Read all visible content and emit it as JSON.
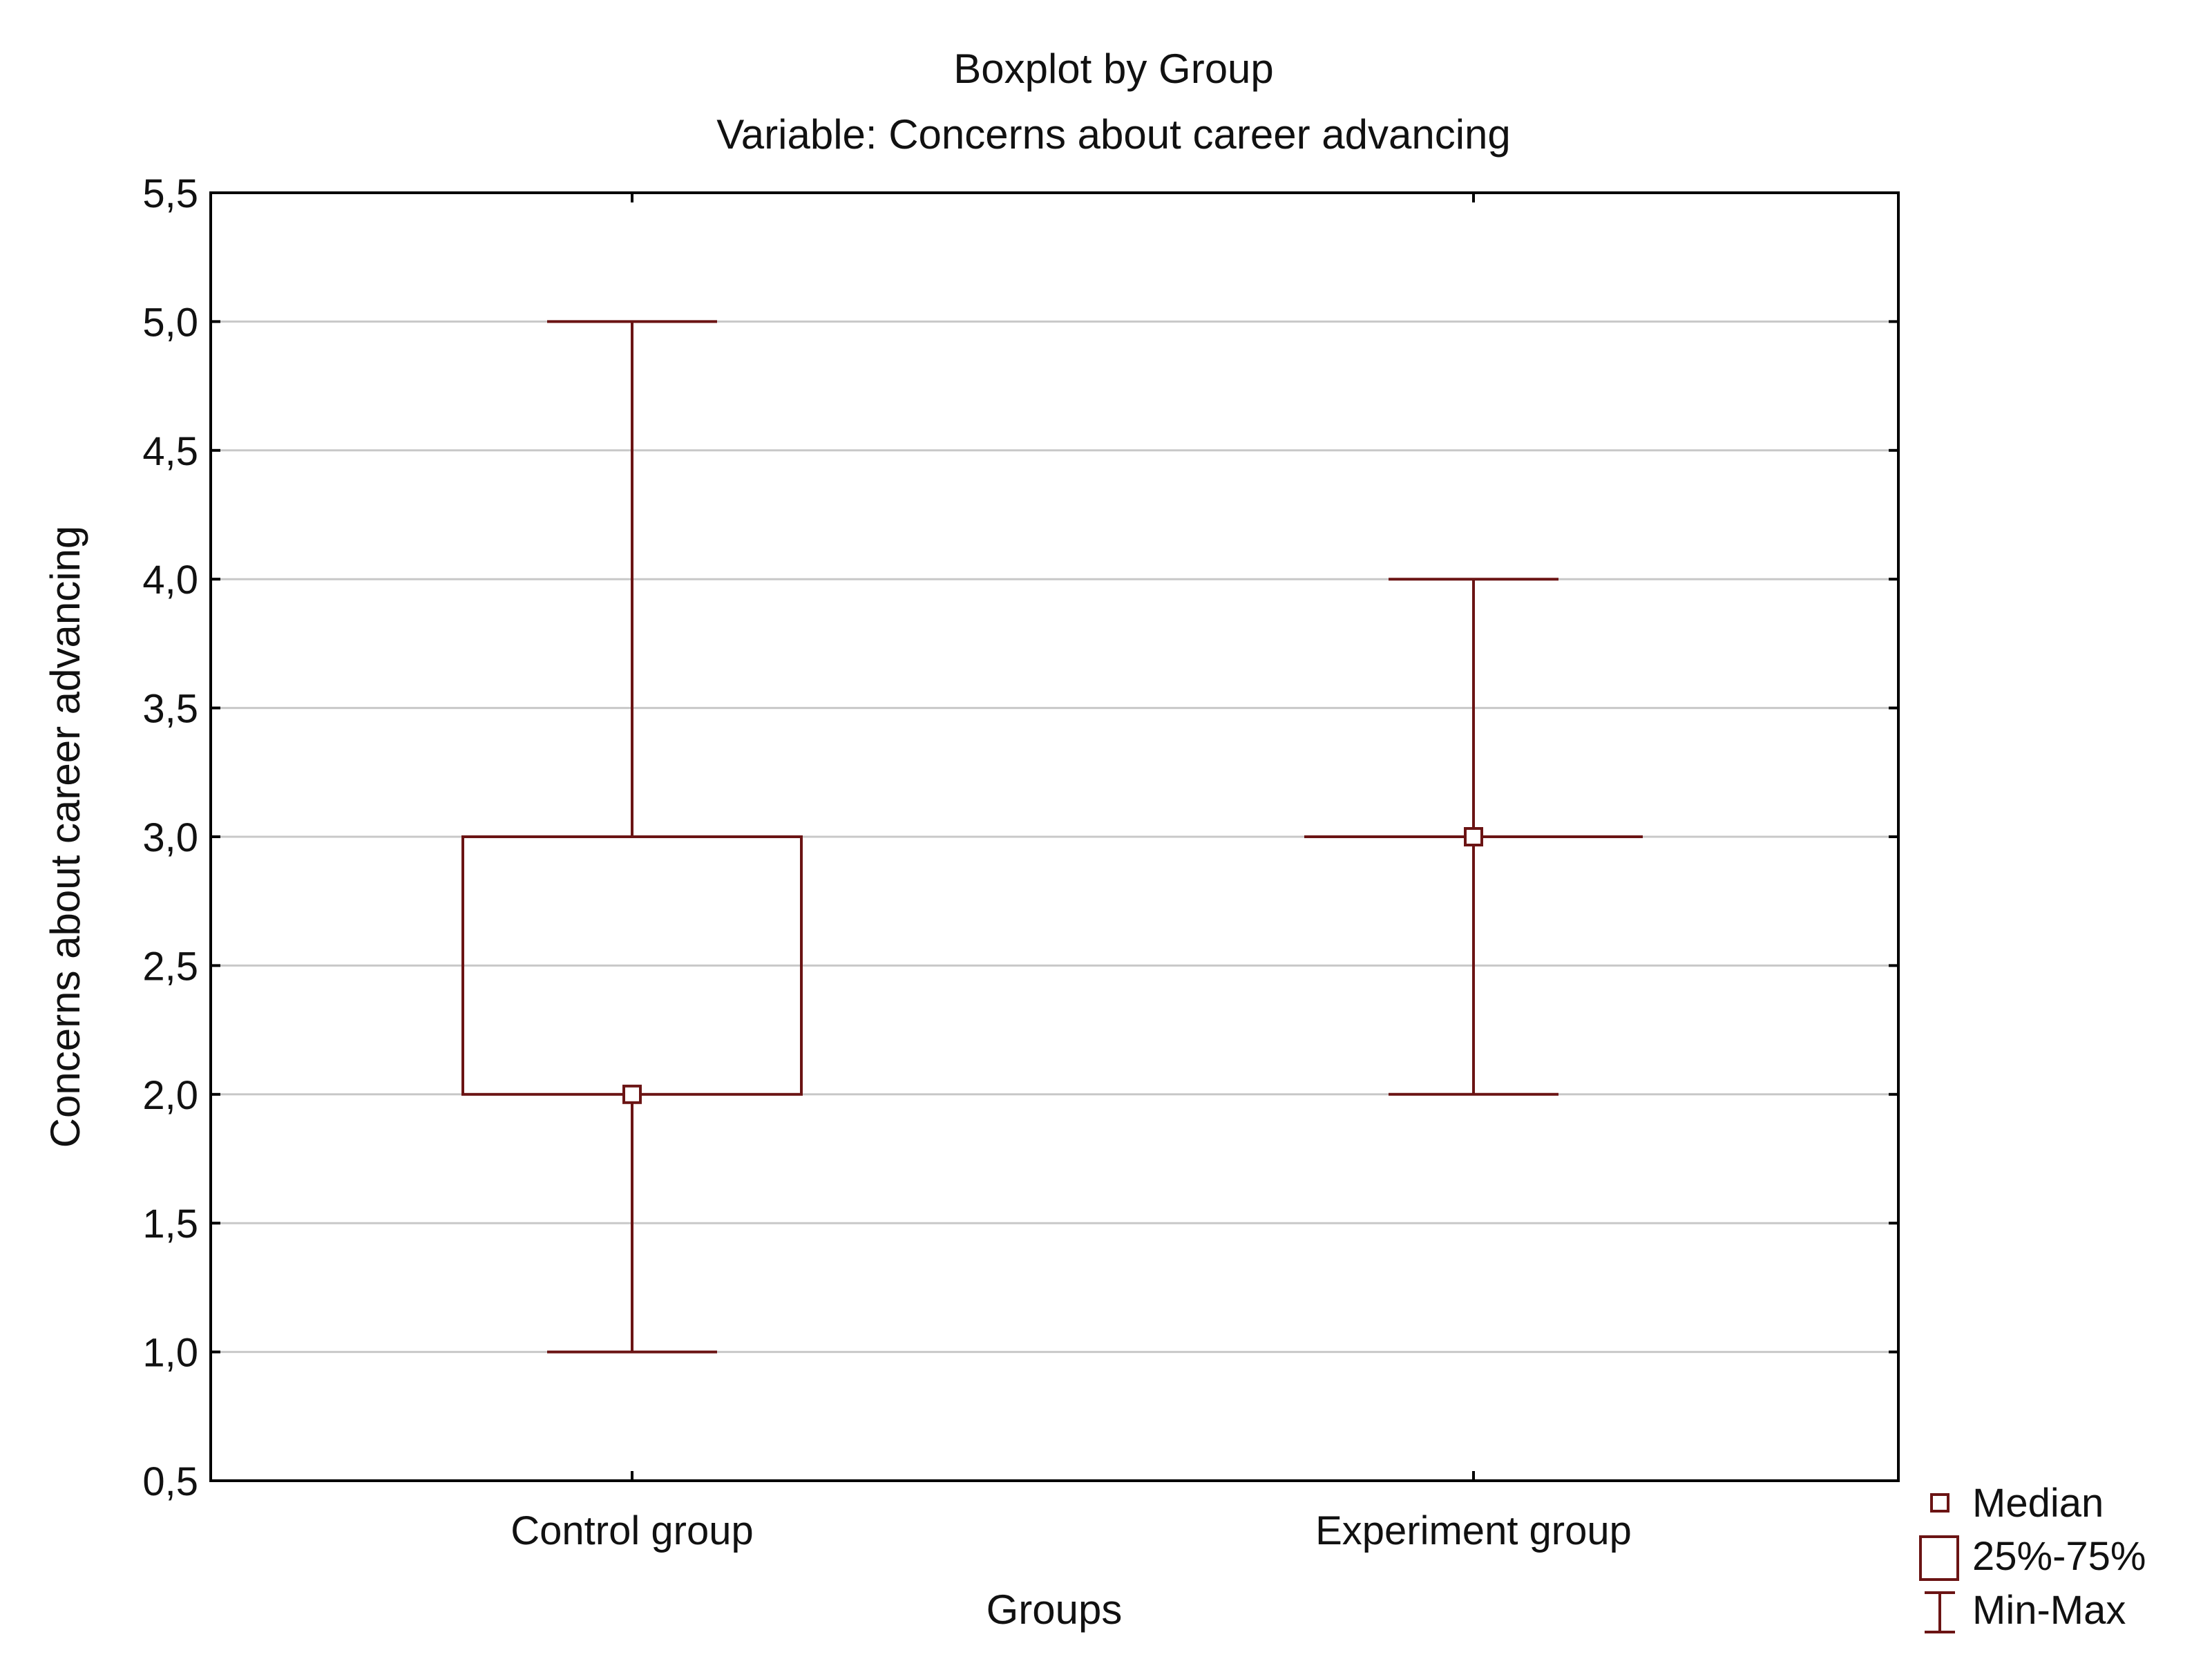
{
  "chart_data": {
    "type": "boxplot",
    "title": "Boxplot by Group",
    "subtitle": "Variable: Concerns about career advancing",
    "xlabel": "Groups",
    "ylabel": "Concerns about career advancing",
    "ylim": [
      0.5,
      5.5
    ],
    "yticks": [
      0.5,
      1.0,
      1.5,
      2.0,
      2.5,
      3.0,
      3.5,
      4.0,
      4.5,
      5.0,
      5.5
    ],
    "ytick_labels": [
      "0,5",
      "1,0",
      "1,5",
      "2,0",
      "2,5",
      "3,0",
      "3,5",
      "4,0",
      "4,5",
      "5,0",
      "5,5"
    ],
    "grid": true,
    "legend_position": "bottom-right",
    "categories": [
      "Control group",
      "Experiment group"
    ],
    "boxes": [
      {
        "group": "Control group",
        "min": 1.0,
        "q1": 2.0,
        "median": 2.0,
        "q3": 3.0,
        "max": 5.0
      },
      {
        "group": "Experiment group",
        "min": 2.0,
        "q1": 3.0,
        "median": 3.0,
        "q3": 3.0,
        "max": 4.0
      }
    ],
    "legend": [
      "Median",
      "25%-75%",
      "Min-Max"
    ]
  },
  "colors": {
    "box": "#6b1414",
    "grid": "#c8c8c8",
    "axis": "#000000",
    "text": "#111111"
  }
}
